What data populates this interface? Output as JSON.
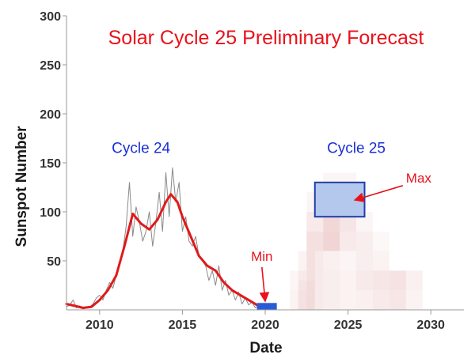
{
  "chart_data": {
    "type": "line",
    "title": "Solar Cycle 25 Preliminary Forecast",
    "xlabel": "Date",
    "ylabel": "Sunspot Number",
    "xlim": [
      2008,
      2032
    ],
    "ylim": [
      0,
      300
    ],
    "x_ticks": [
      "2010",
      "2015",
      "2020",
      "2025",
      "2030"
    ],
    "y_ticks": [
      "50",
      "100",
      "150",
      "200",
      "250",
      "300"
    ],
    "grid": false,
    "colors": {
      "monthly": "#8a8a8a",
      "smoothed": "#e01a1a",
      "title": "#e8121b",
      "cycle_label": "#1a2fd6",
      "min_box": "#2a5bd6",
      "max_box_fill": "#b3c8ec",
      "max_box_stroke": "#1f3fa8",
      "prob_shade": "#e0a0a0"
    },
    "series": [
      {
        "style": "monthly",
        "points": [
          [
            2008.0,
            3
          ],
          [
            2008.2,
            5
          ],
          [
            2008.4,
            10
          ],
          [
            2008.6,
            2
          ],
          [
            2008.8,
            4
          ],
          [
            2009.0,
            1
          ],
          [
            2009.2,
            2
          ],
          [
            2009.4,
            3
          ],
          [
            2009.6,
            6
          ],
          [
            2009.8,
            12
          ],
          [
            2010.0,
            15
          ],
          [
            2010.2,
            10
          ],
          [
            2010.4,
            20
          ],
          [
            2010.6,
            28
          ],
          [
            2010.8,
            22
          ],
          [
            2011.0,
            35
          ],
          [
            2011.2,
            45
          ],
          [
            2011.4,
            60
          ],
          [
            2011.6,
            85
          ],
          [
            2011.8,
            130
          ],
          [
            2012.0,
            75
          ],
          [
            2012.2,
            105
          ],
          [
            2012.4,
            90
          ],
          [
            2012.6,
            70
          ],
          [
            2012.8,
            80
          ],
          [
            2013.0,
            100
          ],
          [
            2013.2,
            65
          ],
          [
            2013.4,
            90
          ],
          [
            2013.6,
            120
          ],
          [
            2013.8,
            80
          ],
          [
            2014.0,
            140
          ],
          [
            2014.2,
            95
          ],
          [
            2014.4,
            145
          ],
          [
            2014.6,
            110
          ],
          [
            2014.8,
            130
          ],
          [
            2015.0,
            80
          ],
          [
            2015.2,
            95
          ],
          [
            2015.4,
            70
          ],
          [
            2015.6,
            65
          ],
          [
            2015.8,
            75
          ],
          [
            2016.0,
            55
          ],
          [
            2016.2,
            50
          ],
          [
            2016.4,
            45
          ],
          [
            2016.6,
            30
          ],
          [
            2016.8,
            40
          ],
          [
            2017.0,
            25
          ],
          [
            2017.2,
            45
          ],
          [
            2017.4,
            20
          ],
          [
            2017.6,
            30
          ],
          [
            2017.8,
            15
          ],
          [
            2018.0,
            20
          ],
          [
            2018.2,
            10
          ],
          [
            2018.4,
            18
          ],
          [
            2018.6,
            6
          ],
          [
            2018.8,
            12
          ],
          [
            2019.0,
            5
          ],
          [
            2019.2,
            8
          ],
          [
            2019.4,
            2
          ],
          [
            2019.6,
            4
          ],
          [
            2019.8,
            1
          ]
        ]
      },
      {
        "style": "smoothed",
        "points": [
          [
            2008.0,
            6
          ],
          [
            2008.5,
            4
          ],
          [
            2009.0,
            2
          ],
          [
            2009.5,
            3
          ],
          [
            2010.0,
            10
          ],
          [
            2010.5,
            20
          ],
          [
            2011.0,
            35
          ],
          [
            2011.5,
            65
          ],
          [
            2012.0,
            98
          ],
          [
            2012.5,
            88
          ],
          [
            2013.0,
            82
          ],
          [
            2013.5,
            92
          ],
          [
            2014.0,
            110
          ],
          [
            2014.3,
            118
          ],
          [
            2014.7,
            110
          ],
          [
            2015.0,
            95
          ],
          [
            2015.5,
            75
          ],
          [
            2016.0,
            55
          ],
          [
            2016.5,
            45
          ],
          [
            2017.0,
            40
          ],
          [
            2017.5,
            28
          ],
          [
            2018.0,
            20
          ],
          [
            2018.5,
            15
          ],
          [
            2019.0,
            10
          ],
          [
            2019.5,
            5
          ],
          [
            2019.8,
            3
          ]
        ]
      }
    ],
    "annotations": {
      "cycle24": {
        "text": "Cycle 24",
        "x": 2012.5,
        "y": 160
      },
      "cycle25": {
        "text": "Cycle 25",
        "x": 2025.5,
        "y": 160
      },
      "min": {
        "text": "Min",
        "x_range": [
          2019.5,
          2020.7
        ],
        "y_range": [
          0,
          7
        ],
        "label_x": 2019.8,
        "label_y": 50
      },
      "max": {
        "text": "Max",
        "x_range": [
          2023.0,
          2026.0
        ],
        "y_range": [
          95,
          130
        ],
        "label_x": 2028.5,
        "label_y": 130
      }
    },
    "forecast_shading": [
      [
        2022.0,
        0,
        20,
        0.14
      ],
      [
        2022.0,
        20,
        40,
        0.1
      ],
      [
        2022.5,
        0,
        30,
        0.2
      ],
      [
        2022.5,
        30,
        60,
        0.12
      ],
      [
        2023.0,
        0,
        40,
        0.22
      ],
      [
        2023.0,
        40,
        60,
        0.22
      ],
      [
        2023.0,
        60,
        80,
        0.32
      ],
      [
        2023.0,
        80,
        100,
        0.22
      ],
      [
        2023.0,
        100,
        120,
        0.1
      ],
      [
        2024.0,
        0,
        40,
        0.18
      ],
      [
        2024.0,
        40,
        60,
        0.16
      ],
      [
        2024.0,
        60,
        80,
        0.45
      ],
      [
        2024.0,
        80,
        100,
        0.42
      ],
      [
        2024.0,
        100,
        120,
        0.14
      ],
      [
        2024.0,
        120,
        140,
        0.1
      ],
      [
        2025.0,
        0,
        40,
        0.14
      ],
      [
        2025.0,
        40,
        60,
        0.1
      ],
      [
        2025.0,
        60,
        80,
        0.22
      ],
      [
        2025.0,
        80,
        100,
        0.28
      ],
      [
        2025.0,
        100,
        120,
        0.12
      ],
      [
        2025.0,
        120,
        140,
        0.1
      ],
      [
        2026.0,
        0,
        20,
        0.16
      ],
      [
        2026.0,
        20,
        40,
        0.22
      ],
      [
        2026.0,
        40,
        60,
        0.18
      ],
      [
        2026.0,
        60,
        80,
        0.18
      ],
      [
        2026.0,
        80,
        100,
        0.1
      ],
      [
        2027.0,
        0,
        20,
        0.22
      ],
      [
        2027.0,
        20,
        40,
        0.26
      ],
      [
        2027.0,
        40,
        60,
        0.14
      ],
      [
        2027.0,
        60,
        80,
        0.08
      ],
      [
        2028.0,
        0,
        20,
        0.26
      ],
      [
        2028.0,
        20,
        40,
        0.3
      ],
      [
        2029.0,
        0,
        20,
        0.14
      ],
      [
        2029.0,
        20,
        40,
        0.16
      ]
    ]
  }
}
